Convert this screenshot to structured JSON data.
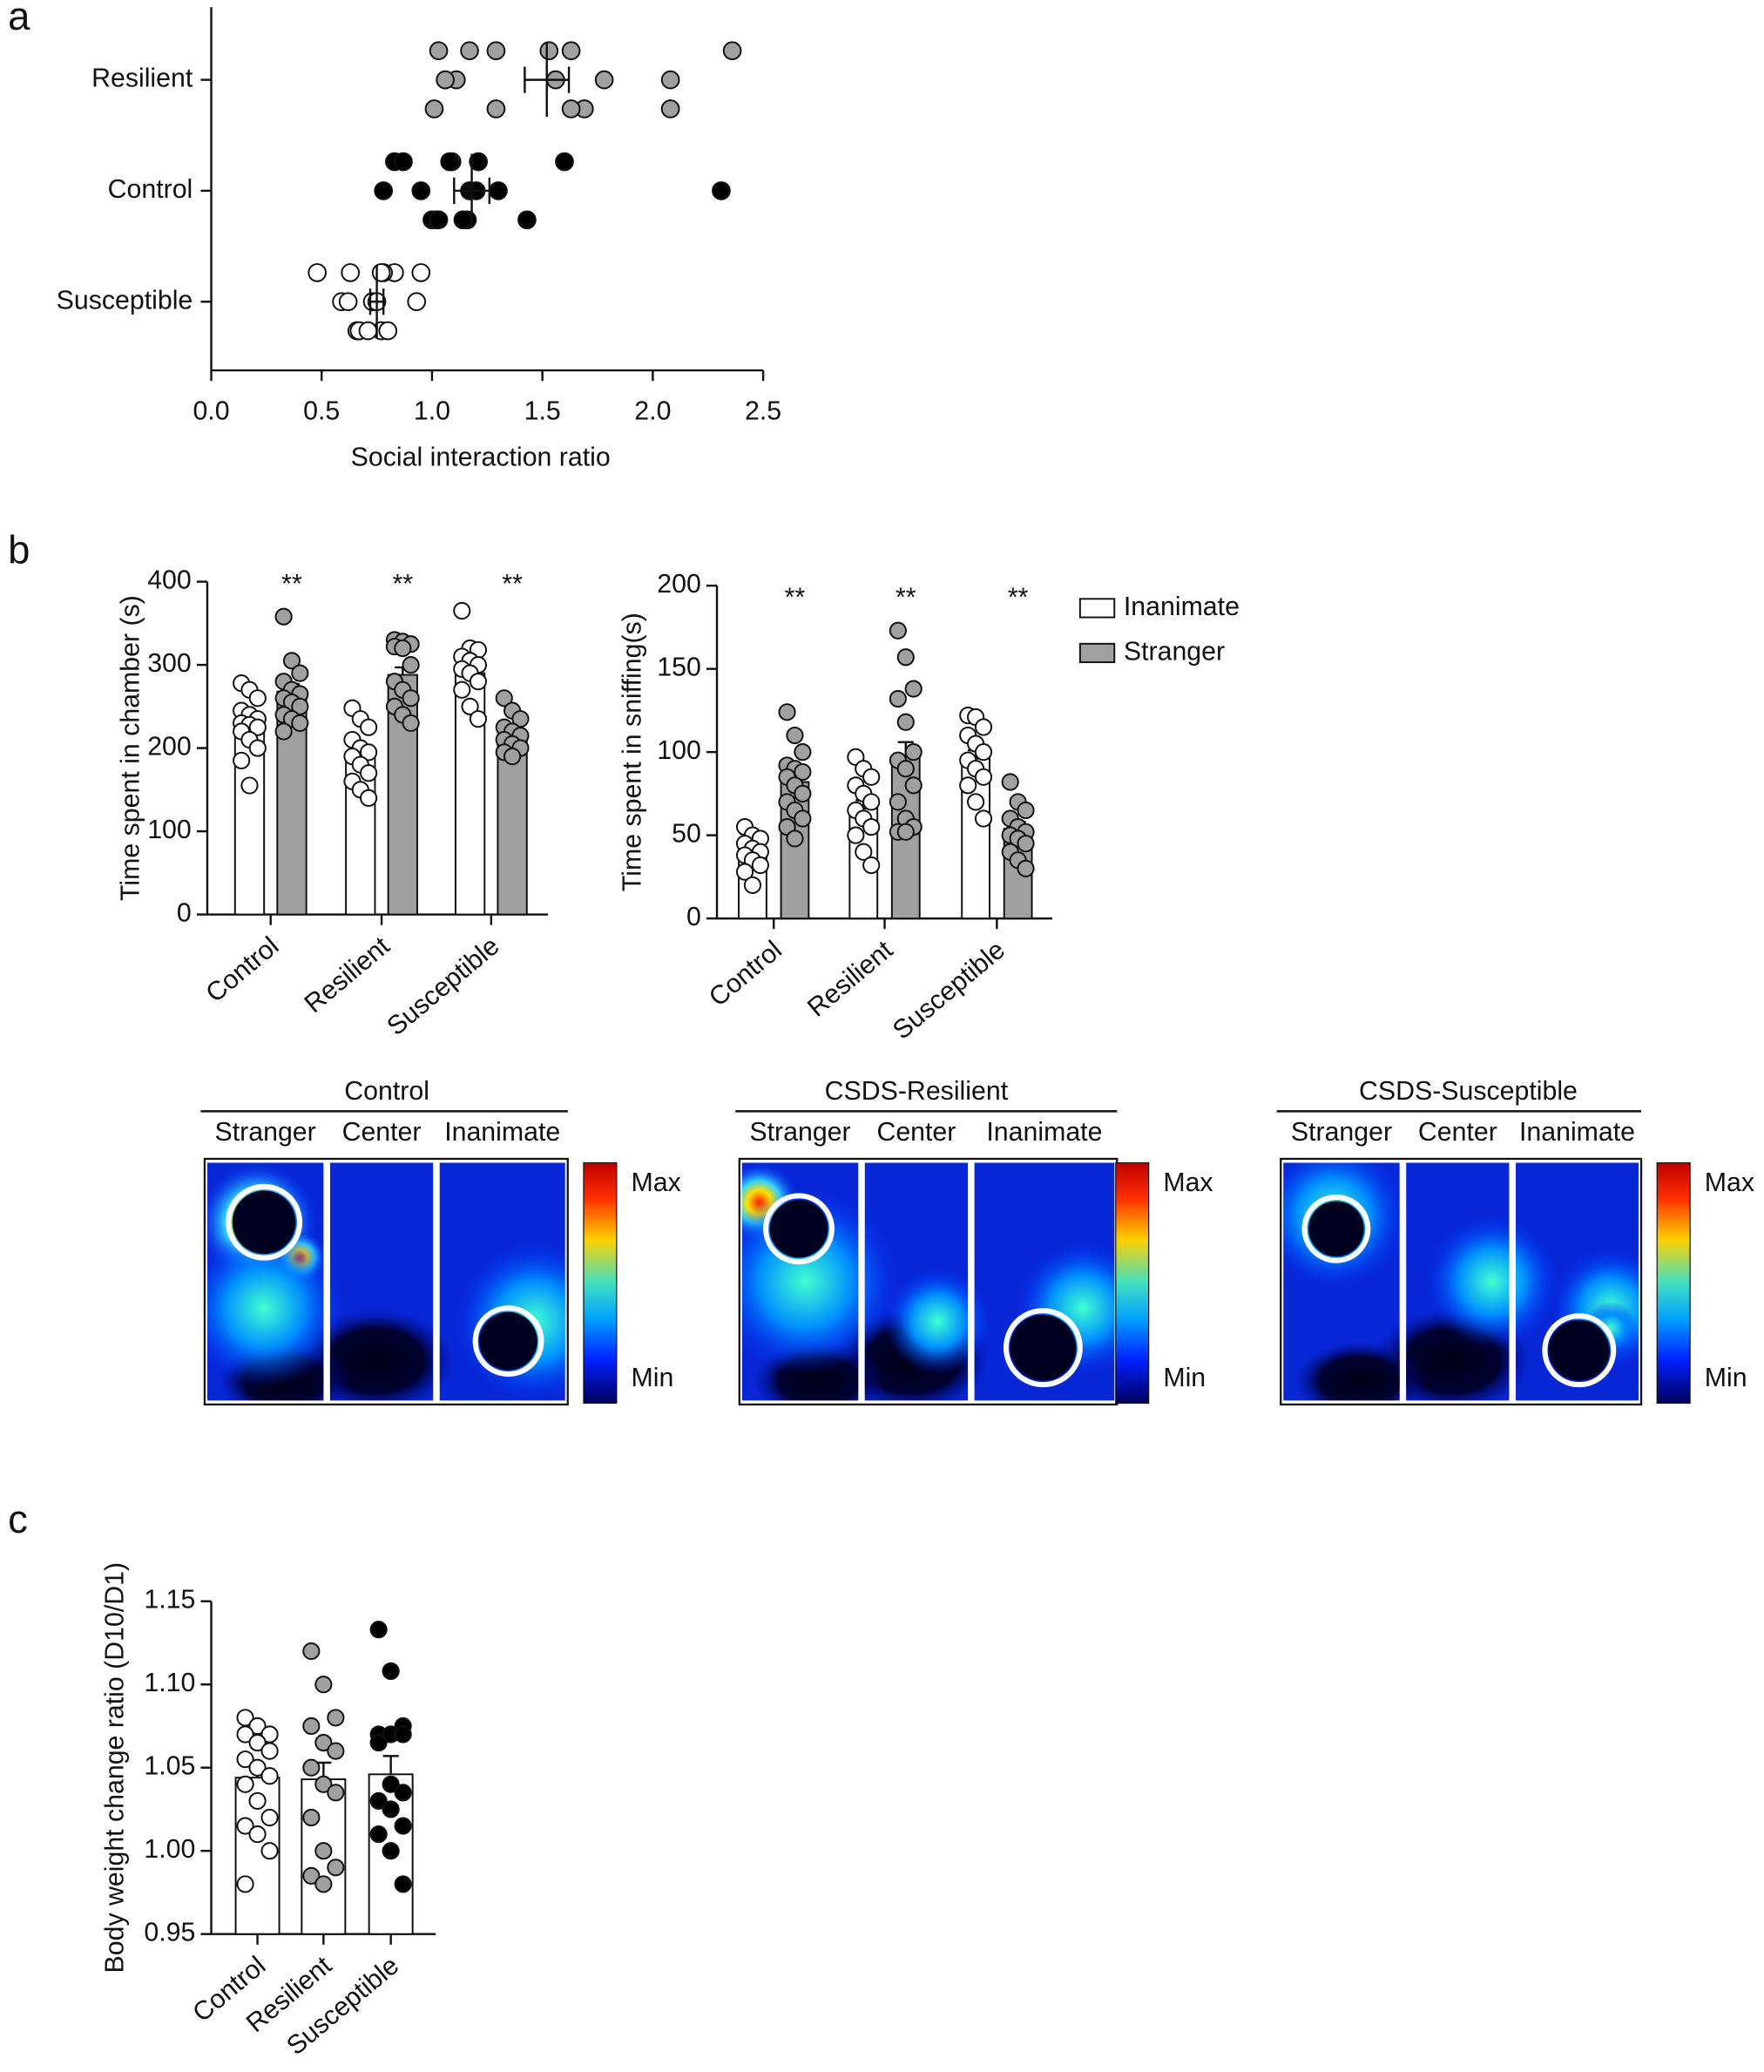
{
  "panel_labels": [
    "a",
    "b",
    "c"
  ],
  "heatmaps": [
    {
      "title": "Control",
      "columns": [
        "Stranger",
        "Center",
        "Inanimate"
      ],
      "max": "Max",
      "min": "Min"
    },
    {
      "title": "CSDS-Resilient",
      "columns": [
        "Stranger",
        "Center",
        "Inanimate"
      ],
      "max": "Max",
      "min": "Min"
    },
    {
      "title": "CSDS-Susceptible",
      "columns": [
        "Stranger",
        "Center",
        "Inanimate"
      ],
      "max": "Max",
      "min": "Min"
    }
  ],
  "chart_data": [
    {
      "type": "dot",
      "x_label": "Social interaction ratio",
      "categories": [
        "Resilient",
        "Control",
        "Susceptible"
      ],
      "colors": [
        "#a0a0a0",
        "#000000",
        "#ffffff"
      ],
      "values": [
        1.52,
        1.18,
        0.75
      ],
      "errors": [
        0.1,
        0.08,
        0.03
      ],
      "points": [
        [
          1.03,
          1.11,
          1.29,
          1.17,
          1.06,
          1.01,
          1.29,
          1.56,
          1.69,
          1.63,
          1.78,
          1.63,
          1.53,
          2.08,
          2.08,
          2.36
        ],
        [
          0.83,
          0.95,
          1.02,
          0.87,
          0.78,
          1.0,
          1.09,
          1.17,
          1.16,
          1.21,
          1.3,
          1.43,
          1.6,
          2.31,
          1.03,
          1.08,
          1.2,
          1.14
        ],
        [
          0.48,
          0.59,
          0.66,
          0.63,
          0.73,
          0.77,
          0.83,
          0.75,
          0.8,
          0.95,
          0.93,
          0.67,
          0.78,
          0.62,
          0.71,
          0.77
        ]
      ],
      "xlim": [
        0,
        2.5
      ],
      "xticks": [
        {
          "value": 0,
          "label": "0.0"
        },
        0.5,
        {
          "value": 1,
          "label": "1.0"
        },
        1.5,
        {
          "value": 2,
          "label": "2.0"
        },
        2.5
      ]
    },
    {
      "type": "bar",
      "y_label": "Time spent in chamber (s)",
      "categories": [
        "Control",
        "Resilient",
        "Susceptible"
      ],
      "annotations": [
        "**",
        "**",
        "**"
      ],
      "series": [
        {
          "color": "#ffffff",
          "values": [
            230,
            195,
            290
          ],
          "errors": [
            9,
            9,
            9
          ],
          "points": [
            [
              278,
              270,
              260,
              245,
              240,
              235,
              230,
              228,
              225,
              220,
              210,
              200,
              185,
              155
            ],
            [
              248,
              235,
              225,
              210,
              200,
              195,
              190,
              180,
              170,
              160,
              150,
              140
            ],
            [
              365,
              320,
              318,
              310,
              305,
              300,
              295,
              290,
              280,
              270,
              250,
              235
            ]
          ]
        },
        {
          "color": "#a0a0a0",
          "values": [
            268,
            288,
            215
          ],
          "errors": [
            9,
            9,
            6
          ],
          "points": [
            [
              358,
              305,
              290,
              280,
              270,
              265,
              260,
              255,
              250,
              240,
              235,
              230,
              220
            ],
            [
              330,
              328,
              325,
              322,
              320,
              300,
              280,
              270,
              260,
              250,
              240,
              230
            ],
            [
              260,
              245,
              235,
              225,
              220,
              215,
              210,
              205,
              200,
              195,
              190
            ]
          ]
        }
      ],
      "ylim": [
        0,
        400
      ],
      "yticks": [
        0,
        100,
        200,
        300,
        400
      ]
    },
    {
      "type": "bar",
      "y_label": "Time spent in sniffing(s)",
      "legend": "right",
      "categories": [
        "Control",
        "Resilient",
        "Susceptible"
      ],
      "annotations": [
        "**",
        "**",
        "**"
      ],
      "series": [
        {
          "name": "Inanimate",
          "color": "#ffffff",
          "values": [
            43,
            66,
            96
          ],
          "errors": [
            3,
            5,
            5
          ],
          "points": [
            [
              55,
              50,
              48,
              45,
              42,
              40,
              38,
              35,
              32,
              28,
              20
            ],
            [
              97,
              90,
              85,
              80,
              75,
              70,
              65,
              60,
              55,
              50,
              40,
              32
            ],
            [
              122,
              121,
              115,
              110,
              105,
              100,
              95,
              90,
              85,
              80,
              70,
              60
            ]
          ]
        },
        {
          "name": "Stranger",
          "color": "#a0a0a0",
          "values": [
            82,
            97,
            54
          ],
          "errors": [
            5,
            9,
            4
          ],
          "points": [
            [
              124,
              110,
              100,
              92,
              90,
              88,
              85,
              80,
              75,
              70,
              65,
              60,
              55,
              48
            ],
            [
              173,
              157,
              138,
              132,
              118,
              100,
              95,
              90,
              80,
              70,
              60,
              55,
              52,
              52
            ],
            [
              82,
              70,
              65,
              60,
              55,
              52,
              50,
              48,
              45,
              40,
              35,
              30
            ]
          ]
        }
      ],
      "ylim": [
        0,
        200
      ],
      "yticks": [
        0,
        50,
        100,
        150,
        200
      ]
    },
    {
      "type": "bar",
      "y_label": "Body weight change ratio (D10/D1)",
      "categories": [
        "Control",
        "Resilient",
        "Susceptible"
      ],
      "color": "#ffffff",
      "point_colors": [
        "#ffffff",
        "#a0a0a0",
        "#000000"
      ],
      "values": [
        1.044,
        1.043,
        1.046
      ],
      "errors": [
        0.008,
        0.01,
        0.011
      ],
      "points": [
        [
          1.08,
          1.075,
          1.07,
          1.07,
          1.065,
          1.06,
          1.055,
          1.05,
          1.045,
          1.04,
          1.03,
          1.02,
          1.015,
          1.01,
          1.0,
          0.98
        ],
        [
          1.12,
          1.1,
          1.08,
          1.075,
          1.065,
          1.06,
          1.05,
          1.04,
          1.035,
          1.02,
          1.0,
          0.99,
          0.985,
          0.98
        ],
        [
          1.133,
          1.108,
          1.075,
          1.07,
          1.07,
          1.07,
          1.065,
          1.04,
          1.035,
          1.03,
          1.025,
          1.015,
          1.01,
          1.0,
          0.98
        ]
      ],
      "ylim": [
        0.95,
        1.15
      ],
      "yticks": [
        0.95,
        {
          "value": 1,
          "label": "1.00"
        },
        1.05,
        {
          "value": 1.1,
          "label": "1.10"
        },
        1.15
      ]
    }
  ]
}
